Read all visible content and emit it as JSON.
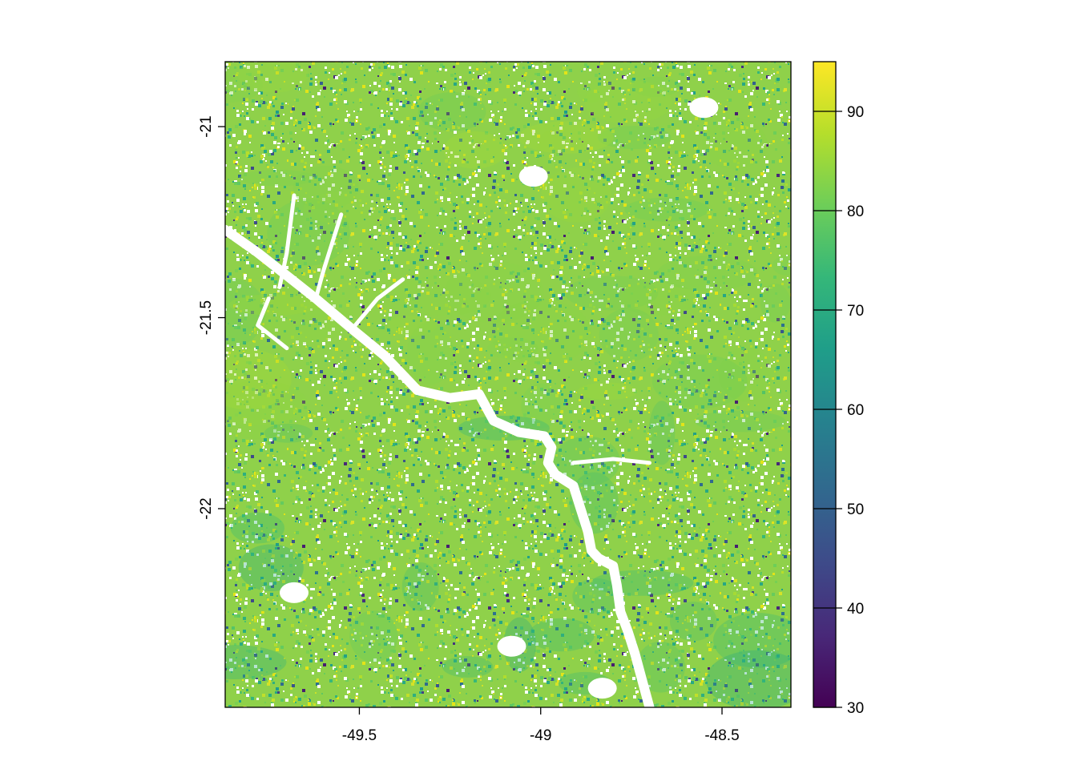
{
  "chart_data": {
    "type": "heatmap",
    "title": "",
    "xlabel": "",
    "ylabel": "",
    "xlim": [
      -49.87,
      -48.31
    ],
    "ylim": [
      -22.52,
      -20.83
    ],
    "x_ticks": [
      {
        "value": -49.5,
        "label": "-49.5"
      },
      {
        "value": -49,
        "label": "-49"
      },
      {
        "value": -48.5,
        "label": "-48.5"
      }
    ],
    "y_ticks": [
      {
        "value": -21,
        "label": "-21"
      },
      {
        "value": -21.5,
        "label": "-21.5"
      },
      {
        "value": -22,
        "label": "-22"
      }
    ],
    "color_scale": {
      "palette": "viridis",
      "range": [
        30,
        95
      ],
      "ticks": [
        {
          "value": 30,
          "label": "30"
        },
        {
          "value": 40,
          "label": "40"
        },
        {
          "value": 50,
          "label": "50"
        },
        {
          "value": 60,
          "label": "60"
        },
        {
          "value": 70,
          "label": "70"
        },
        {
          "value": 80,
          "label": "80"
        },
        {
          "value": 90,
          "label": "90"
        }
      ],
      "stops": [
        "#440154",
        "#482878",
        "#3e4a89",
        "#31688e",
        "#26828e",
        "#1f9e89",
        "#35b779",
        "#6ece58",
        "#b5de2b",
        "#fde725"
      ]
    },
    "typical_value": 82,
    "river_path_lonlat": [
      [
        -49.87,
        -21.27
      ],
      [
        -49.78,
        -21.33
      ],
      [
        -49.7,
        -21.39
      ],
      [
        -49.62,
        -21.45
      ],
      [
        -49.52,
        -21.53
      ],
      [
        -49.43,
        -21.6
      ],
      [
        -49.34,
        -21.69
      ],
      [
        -49.25,
        -21.71
      ],
      [
        -49.17,
        -21.7
      ],
      [
        -49.13,
        -21.77
      ],
      [
        -49.06,
        -21.8
      ],
      [
        -48.99,
        -21.81
      ],
      [
        -48.97,
        -21.84
      ],
      [
        -48.98,
        -21.88
      ],
      [
        -48.96,
        -21.91
      ],
      [
        -48.91,
        -21.94
      ],
      [
        -48.89,
        -22.0
      ],
      [
        -48.87,
        -22.06
      ],
      [
        -48.86,
        -22.11
      ],
      [
        -48.84,
        -22.13
      ],
      [
        -48.8,
        -22.15
      ],
      [
        -48.79,
        -22.2
      ],
      [
        -48.78,
        -22.27
      ],
      [
        -48.76,
        -22.32
      ],
      [
        -48.74,
        -22.38
      ],
      [
        -48.72,
        -22.45
      ],
      [
        -48.7,
        -22.52
      ]
    ]
  }
}
